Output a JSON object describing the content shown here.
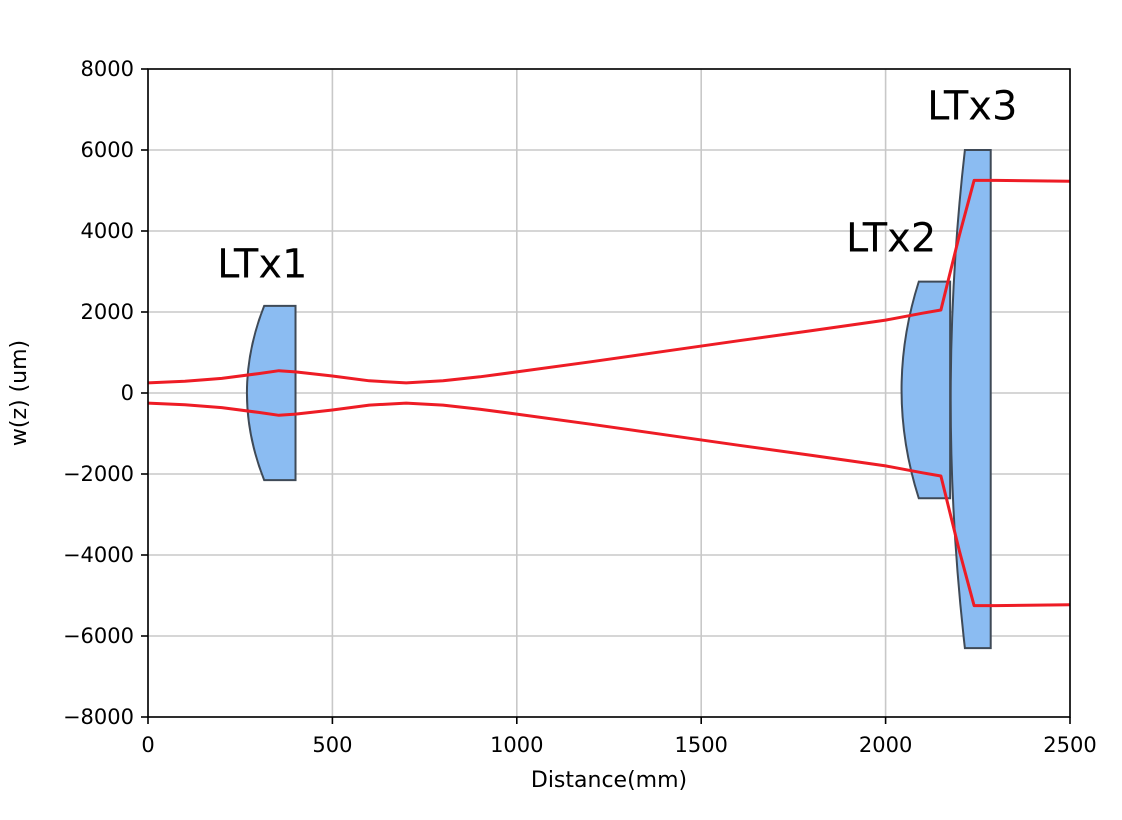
{
  "chart_data": {
    "type": "line",
    "xlabel": "Distance(mm)",
    "ylabel": "w(z) (um)",
    "xlim": [
      0,
      2500
    ],
    "ylim": [
      -8000,
      8000
    ],
    "xticks": [
      0,
      500,
      1000,
      1500,
      2000,
      2500
    ],
    "yticks": [
      -8000,
      -6000,
      -4000,
      -2000,
      0,
      2000,
      4000,
      6000,
      8000
    ],
    "grid": true,
    "series": [
      {
        "color": "#ee1c25",
        "x": [
          0,
          100,
          200,
          300,
          355,
          400,
          500,
          600,
          700,
          800,
          900,
          1000,
          1200,
          1400,
          1600,
          1800,
          2000,
          2100,
          2150,
          2200,
          2240,
          2300,
          2500
        ],
        "y": [
          250,
          290,
          360,
          480,
          550,
          520,
          420,
          300,
          250,
          300,
          400,
          520,
          770,
          1030,
          1290,
          1540,
          1800,
          1970,
          2050,
          3900,
          5250,
          5250,
          5230
        ]
      },
      {
        "color": "#ee1c25",
        "x": [
          0,
          100,
          200,
          300,
          355,
          400,
          500,
          600,
          700,
          800,
          900,
          1000,
          1200,
          1400,
          1600,
          1800,
          2000,
          2100,
          2150,
          2200,
          2240,
          2300,
          2500
        ],
        "y": [
          -250,
          -290,
          -360,
          -480,
          -550,
          -520,
          -420,
          -300,
          -250,
          -300,
          -400,
          -520,
          -770,
          -1030,
          -1290,
          -1540,
          -1800,
          -1970,
          -2050,
          -3900,
          -5250,
          -5250,
          -5230
        ]
      }
    ],
    "lenses": [
      {
        "label": "LTx1",
        "x_left": 315,
        "x_right": 400,
        "y_top": 2150,
        "y_bottom": -2150,
        "label_x": 310,
        "label_y": 2850
      },
      {
        "label": "LTx2",
        "x_left": 2090,
        "x_right": 2175,
        "y_top": 2750,
        "y_bottom": -2600,
        "label_x": 2015,
        "label_y": 3500
      },
      {
        "label": "LTx3",
        "x_left": 2215,
        "x_right": 2285,
        "y_top": 6000,
        "y_bottom": -6300,
        "label_x": 2235,
        "label_y": 6750
      }
    ]
  }
}
